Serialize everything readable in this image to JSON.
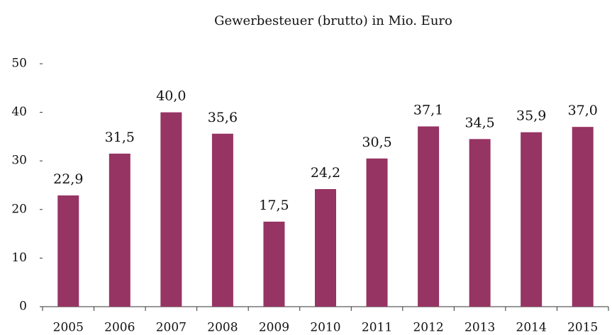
{
  "chart_data": {
    "type": "bar",
    "title": "Gewerbesteuer (brutto) in Mio. Euro",
    "categories": [
      "2005",
      "2006",
      "2007",
      "2008",
      "2009",
      "2010",
      "2011",
      "2012",
      "2013",
      "2014",
      "2015"
    ],
    "values": [
      22.9,
      31.5,
      40.0,
      35.6,
      17.5,
      24.2,
      30.5,
      37.1,
      34.5,
      35.9,
      37.0
    ],
    "value_labels": [
      "22,9",
      "31,5",
      "40,0",
      "35,6",
      "17,5",
      "24,2",
      "30,5",
      "37,1",
      "34,5",
      "35,9",
      "37,0"
    ],
    "color": "#963463",
    "ylim": [
      0,
      50
    ],
    "yticks": [
      0,
      10,
      20,
      30,
      40,
      50
    ],
    "grid": false
  }
}
